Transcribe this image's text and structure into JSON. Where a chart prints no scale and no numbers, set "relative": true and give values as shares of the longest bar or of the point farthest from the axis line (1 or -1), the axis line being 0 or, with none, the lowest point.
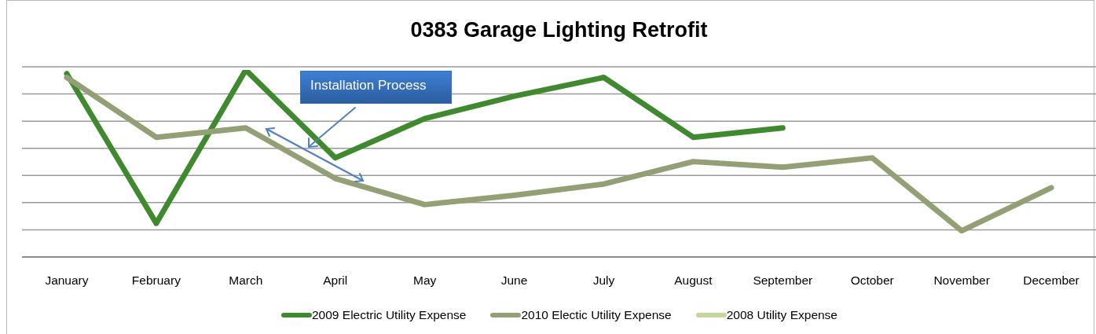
{
  "chart_data": {
    "type": "line",
    "title": "0383 Garage Lighting Retrofit",
    "categories": [
      "January",
      "February",
      "March",
      "April",
      "May",
      "June",
      "July",
      "August",
      "September",
      "October",
      "November",
      "December"
    ],
    "relative": true,
    "series": [
      {
        "name": "2009 Electric Utility Expense",
        "color": "#3f8a2f",
        "values": [
          0.98,
          0.18,
          1,
          0.53,
          0.74,
          0.86,
          0.96,
          0.64,
          0.69,
          null,
          null,
          null
        ]
      },
      {
        "name": "2010 Electic Utility Expense",
        "color": "#939f74",
        "values": [
          0.96,
          0.64,
          0.69,
          0.42,
          0.28,
          0.33,
          0.39,
          0.51,
          0.48,
          0.53,
          0.14,
          0.37
        ]
      },
      {
        "name": "2008 Utility Expense",
        "color": "#c3d69b",
        "values": [
          null,
          null,
          null,
          null,
          null,
          null,
          null,
          null,
          null,
          null,
          null,
          null
        ]
      }
    ],
    "grid": "y",
    "legend": "bottom",
    "annotations": [
      "Installation Process"
    ]
  }
}
